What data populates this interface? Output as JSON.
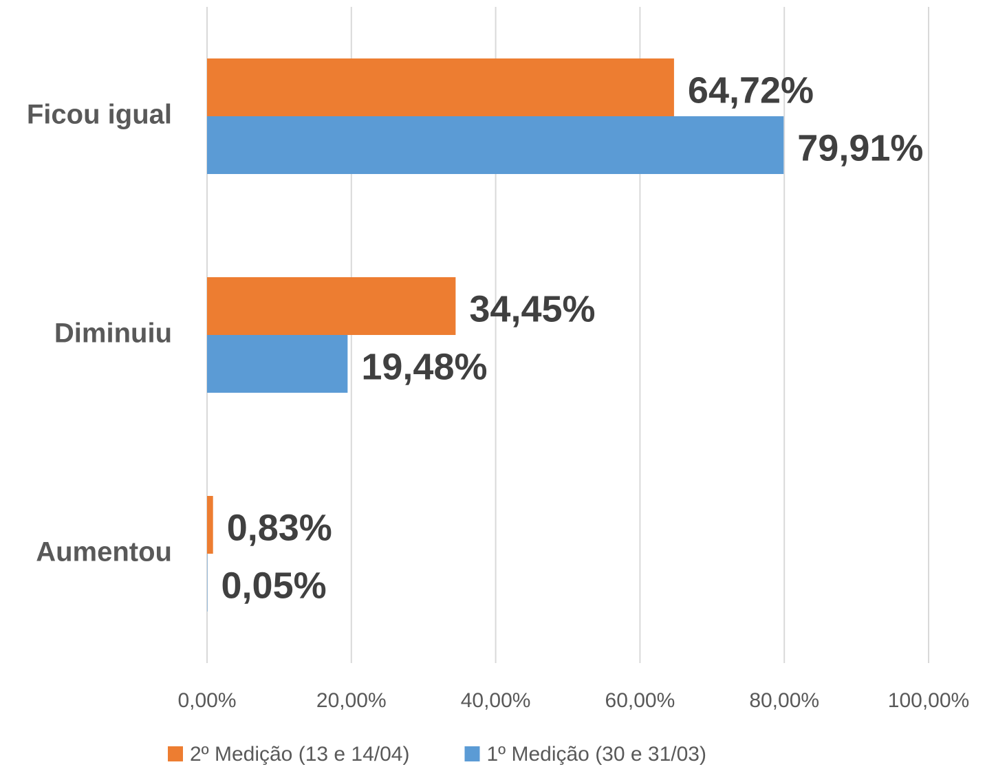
{
  "chart_data": {
    "type": "barh",
    "categories": [
      "Ficou igual",
      "Diminuiu",
      "Aumentou"
    ],
    "series": [
      {
        "name": "2º Medição (13 e 14/04)",
        "color": "#ed7d31",
        "values": [
          64.72,
          34.45,
          0.83
        ],
        "value_labels": [
          "64,72%",
          "34,45%",
          "0,83%"
        ]
      },
      {
        "name": "1º Medição (30 e 31/03)",
        "color": "#5b9bd5",
        "values": [
          79.91,
          19.48,
          0.05
        ],
        "value_labels": [
          "79,91%",
          "19,48%",
          "0,05%"
        ]
      }
    ],
    "xlim": [
      0,
      100
    ],
    "xticks": [
      {
        "value": 0,
        "label": "0,00%"
      },
      {
        "value": 20,
        "label": "20,00%"
      },
      {
        "value": 40,
        "label": "40,00%"
      },
      {
        "value": 60,
        "label": "60,00%"
      },
      {
        "value": 80,
        "label": "80,00%"
      },
      {
        "value": 100,
        "label": "100,00%"
      }
    ],
    "grid": true,
    "legend": "bottom"
  }
}
